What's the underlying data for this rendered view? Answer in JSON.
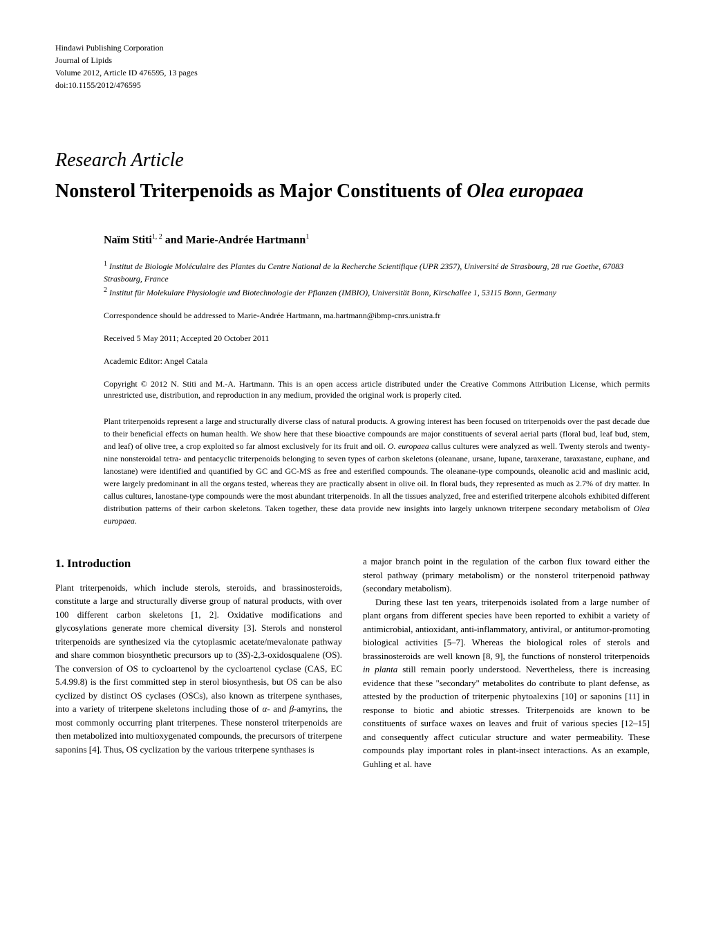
{
  "header": {
    "publisher": "Hindawi Publishing Corporation",
    "journal": "Journal of Lipids",
    "volume_info": "Volume 2012, Article ID 476595, 13 pages",
    "doi": "doi:10.1155/2012/476595"
  },
  "article": {
    "type": "Research Article",
    "title_prefix": "Nonsterol Triterpenoids as Major Constituents of ",
    "title_species": "Olea europaea",
    "authors": "Naïm Stiti",
    "authors_sup1": "1, 2",
    "authors_and": " and Marie-Andrée Hartmann",
    "authors_sup2": "1"
  },
  "affiliations": {
    "aff1_sup": "1",
    "aff1": " Institut de Biologie Moléculaire des Plantes du Centre National de la Recherche Scientifique (UPR 2357), Université de Strasbourg, 28 rue Goethe, 67083 Strasbourg, France",
    "aff2_sup": "2",
    "aff2": " Institut für Molekulare Physiologie und Biotechnologie der Pflanzen (IMBIO), Universität Bonn, Kirschallee 1, 53115 Bonn, Germany"
  },
  "correspondence": {
    "text": "Correspondence should be addressed to Marie-Andrée Hartmann, ",
    "email": "ma.hartmann@ibmp-cnrs.unistra.fr"
  },
  "dates": "Received 5 May 2011; Accepted 20 October 2011",
  "editor": "Academic Editor: Angel Catala",
  "copyright": "Copyright © 2012 N. Stiti and M.-A. Hartmann. This is an open access article distributed under the Creative Commons Attribution License, which permits unrestricted use, distribution, and reproduction in any medium, provided the original work is properly cited.",
  "abstract": {
    "p1": "Plant triterpenoids represent a large and structurally diverse class of natural products. A growing interest has been focused on triterpenoids over the past decade due to their beneficial effects on human health. We show here that these bioactive compounds are major constituents of several aerial parts (floral bud, leaf bud, stem, and leaf) of olive tree, a crop exploited so far almost exclusively for its fruit and oil. ",
    "p1_em1": "O. europaea",
    "p1_cont": " callus cultures were analyzed as well. Twenty sterols and twenty-nine nonsteroidal tetra- and pentacyclic triterpenoids belonging to seven types of carbon skeletons (oleanane, ursane, lupane, taraxerane, taraxastane, euphane, and lanostane) were identified and quantified by GC and GC-MS as free and esterified compounds. The oleanane-type compounds, oleanolic acid and maslinic acid, were largely predominant in all the organs tested, whereas they are practically absent in olive oil. In floral buds, they represented as much as 2.7% of dry matter. In callus cultures, lanostane-type compounds were the most abundant triterpenoids. In all the tissues analyzed, free and esterified triterpene alcohols exhibited different distribution patterns of their carbon skeletons. Taken together, these data provide new insights into largely unknown triterpene secondary metabolism of ",
    "p1_em2": "Olea europaea",
    "p1_end": "."
  },
  "intro": {
    "heading": "1. Introduction",
    "col1_p1": "Plant triterpenoids, which include sterols, steroids, and brassinosteroids, constitute a large and structurally diverse group of natural products, with over 100 different carbon skeletons [1, 2]. Oxidative modifications and glycosylations generate more chemical diversity [3]. Sterols and nonsterol triterpenoids are synthesized via the cytoplasmic acetate/mevalonate pathway and share common biosynthetic precursors up to (3",
    "col1_p1_em1": "S",
    "col1_p1_cont": ")-2,3-oxidosqualene (OS). The conversion of OS to cycloartenol by the cycloartenol cyclase (CAS, EC 5.4.99.8) is the first committed step in sterol biosynthesis, but OS can be also cyclized by distinct OS cyclases (OSCs), also known as triterpene synthases, into a variety of triterpene skeletons including those of ",
    "col1_p1_em2": "α",
    "col1_p1_cont2": "- and ",
    "col1_p1_em3": "β",
    "col1_p1_cont3": "-amyrins, the most commonly occurring plant triterpenes. These nonsterol triterpenoids are then metabolized into multioxygenated compounds, the precursors of triterpene saponins [4]. Thus, OS cyclization by the various triterpene synthases is",
    "col2_p1": "a major branch point in the regulation of the carbon flux toward either the sterol pathway (primary metabolism) or the nonsterol triterpenoid pathway (secondary metabolism).",
    "col2_p2": "During these last ten years, triterpenoids isolated from a large number of plant organs from different species have been reported to exhibit a variety of antimicrobial, antioxidant, anti-inflammatory, antiviral, or antitumor-promoting biological activities [5–7]. Whereas the biological roles of sterols and brassinosteroids are well known [8, 9], the functions of nonsterol triterpenoids ",
    "col2_p2_em1": "in planta",
    "col2_p2_cont": " still remain poorly understood. Nevertheless, there is increasing evidence that these \"secondary\" metabolites do contribute to plant defense, as attested by the production of triterpenic phytoalexins [10] or saponins [11] in response to biotic and abiotic stresses. Triterpenoids are known to be constituents of surface waxes on leaves and fruit of various species [12–15] and consequently affect cuticular structure and water permeability. These compounds play important roles in plant-insect interactions. As an example, Guhling et al. have"
  },
  "styles": {
    "body_font_size": 13,
    "header_font_size": 12,
    "title_font_size": 28,
    "authors_font_size": 16,
    "meta_font_size": 12,
    "abstract_font_size": 12,
    "heading_font_size": 17,
    "text_color": "#000000",
    "background_color": "#ffffff",
    "left_indent": 70,
    "column_gap": 30
  }
}
